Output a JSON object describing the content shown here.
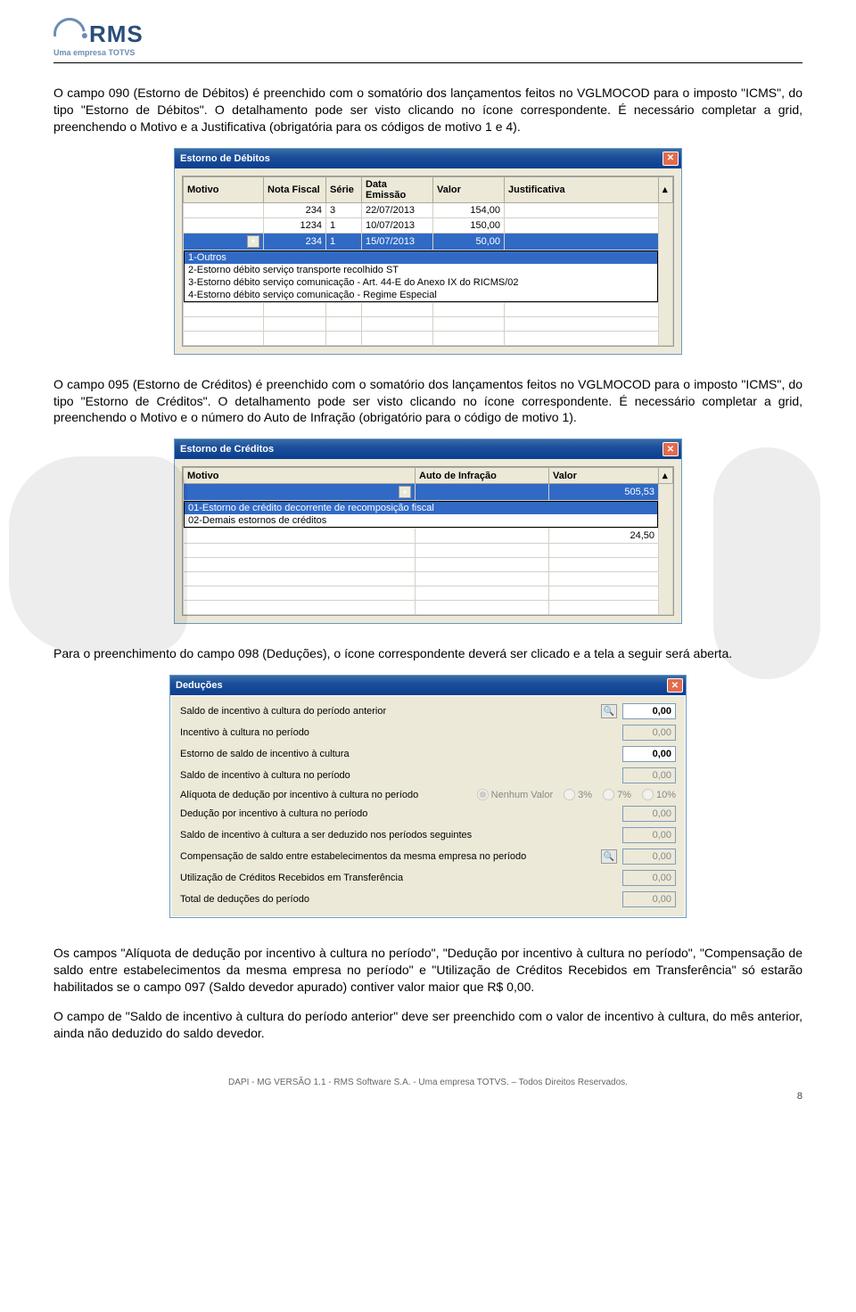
{
  "logo": {
    "text": "RMS",
    "subtitle": "Uma empresa TOTVS"
  },
  "para1": "O campo 090 (Estorno de Débitos) é preenchido com o somatório dos lançamentos feitos no VGLMOCOD para o imposto \"ICMS\", do tipo \"Estorno de Débitos\". O detalhamento pode ser visto clicando no ícone correspondente. É necessário completar a grid, preenchendo o Motivo e a Justificativa (obrigatória para os códigos de motivo 1 e 4).",
  "window1": {
    "title": "Estorno de Débitos",
    "cols": {
      "c1": "Motivo",
      "c2": "Nota Fiscal",
      "c3": "Série",
      "c4": "Data Emissão",
      "c5": "Valor",
      "c6": "Justificativa"
    },
    "rows": [
      {
        "motivo": "",
        "nf": "234",
        "serie": "3",
        "data": "22/07/2013",
        "valor": "154,00",
        "just": ""
      },
      {
        "motivo": "",
        "nf": "1234",
        "serie": "1",
        "data": "10/07/2013",
        "valor": "150,00",
        "just": ""
      },
      {
        "motivo": "",
        "nf": "234",
        "serie": "1",
        "data": "15/07/2013",
        "valor": "50,00",
        "just": ""
      }
    ],
    "dropdown": [
      "1-Outros",
      "2-Estorno débito serviço transporte recolhido ST",
      "3-Estorno débito serviço comunicação - Art. 44-E do Anexo IX do RICMS/02",
      "4-Estorno débito serviço comunicação - Regime Especial"
    ]
  },
  "para2": "O campo 095 (Estorno de Créditos) é preenchido com o somatório dos lançamentos feitos no VGLMOCOD para o imposto \"ICMS\", do tipo \"Estorno de Créditos\". O detalhamento pode ser visto clicando no ícone correspondente. É necessário completar a grid, preenchendo o Motivo e o número do Auto de Infração (obrigatório para o código de motivo 1).",
  "window2": {
    "title": "Estorno de Créditos",
    "cols": {
      "c1": "Motivo",
      "c2": "Auto de Infração",
      "c3": "Valor"
    },
    "rows": [
      {
        "motivo": "",
        "auto": "",
        "valor": "505,53"
      },
      {
        "motivo": "",
        "auto": "",
        "valor": "24,50"
      }
    ],
    "dropdown": [
      "01-Estorno de crédito decorrente de recomposição fiscal",
      "02-Demais estornos de créditos"
    ]
  },
  "para3": "Para o preenchimento do campo 098 (Deduções), o ícone correspondente deverá ser clicado e a tela a seguir será aberta.",
  "window3": {
    "title": "Deduções",
    "rows": [
      {
        "label": "Saldo de incentivo à cultura do período anterior",
        "val": "0,00",
        "editable": true,
        "bold": true,
        "icon": true
      },
      {
        "label": "Incentivo à cultura no período",
        "val": "0,00",
        "editable": false
      },
      {
        "label": "Estorno de saldo de incentivo à cultura",
        "val": "0,00",
        "editable": true,
        "bold": true
      },
      {
        "label": "Saldo de incentivo à cultura no período",
        "val": "0,00",
        "editable": false
      },
      {
        "label": "Alíquota de dedução por incentivo à cultura no período",
        "radios": true,
        "options": [
          "Nenhum Valor",
          "3%",
          "7%",
          "10%"
        ]
      },
      {
        "label": "Dedução por incentivo à cultura no período",
        "val": "0,00",
        "editable": false
      },
      {
        "label": "Saldo de incentivo à cultura a ser deduzido nos períodos seguintes",
        "val": "0,00",
        "editable": false
      },
      {
        "label": "Compensação de saldo entre estabelecimentos da mesma empresa no período",
        "val": "0,00",
        "editable": false,
        "icon": true
      },
      {
        "label": "Utilização de Créditos Recebidos em Transferência",
        "val": "0,00",
        "editable": false
      },
      {
        "label": "Total de deduções do período",
        "val": "0,00",
        "editable": false
      }
    ]
  },
  "para4": "Os campos \"Alíquota de dedução por incentivo à cultura no período\", \"Dedução por incentivo à cultura no período\", \"Compensação de saldo entre estabelecimentos da mesma empresa no período\" e \"Utilização de Créditos Recebidos em Transferência\" só estarão habilitados se o campo 097 (Saldo devedor apurado) contiver valor maior que R$ 0,00.",
  "para5": "O campo de \"Saldo de incentivo à cultura do período anterior\" deve ser preenchido com o valor de incentivo à cultura, do mês anterior, ainda não deduzido do saldo devedor.",
  "footer": "DAPI - MG VERSÃO 1.1 - RMS Software S.A.  - Uma empresa TOTVS. – Todos Direitos Reservados.",
  "page": "8"
}
